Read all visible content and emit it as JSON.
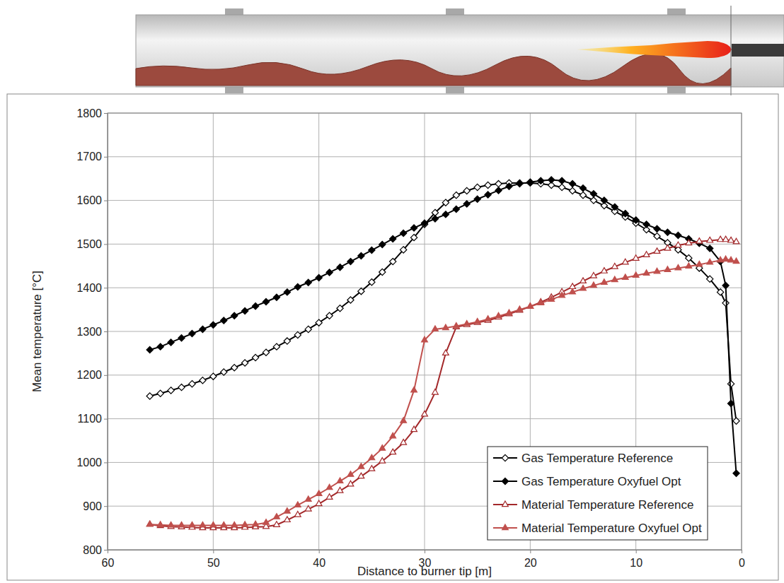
{
  "chart_data": {
    "type": "line",
    "x_label": "Distance to burner tip [m]",
    "y_label": "Mean temperature [°C]",
    "x": [
      56,
      55,
      54,
      53,
      52,
      51,
      50,
      49,
      48,
      47,
      46,
      45,
      44,
      43,
      42,
      41,
      40,
      39,
      38,
      37,
      36,
      35,
      34,
      33,
      32,
      31,
      30,
      29,
      28,
      27,
      26,
      25,
      24,
      23,
      22,
      21,
      20,
      19,
      18,
      17,
      16,
      15,
      14,
      13,
      12,
      11,
      10,
      9,
      8,
      7,
      6,
      5,
      4,
      3,
      2,
      1.5,
      1,
      0.5
    ],
    "series": [
      {
        "name": "Gas Temperature Reference",
        "color": "#000000",
        "marker": "diamond-open",
        "line_style": "solid",
        "values": [
          1152,
          1158,
          1165,
          1172,
          1180,
          1188,
          1197,
          1207,
          1217,
          1228,
          1240,
          1252,
          1265,
          1278,
          1292,
          1305,
          1320,
          1336,
          1353,
          1372,
          1392,
          1413,
          1436,
          1460,
          1487,
          1515,
          1545,
          1572,
          1595,
          1612,
          1622,
          1630,
          1635,
          1638,
          1640,
          1640,
          1640,
          1638,
          1635,
          1630,
          1622,
          1612,
          1600,
          1588,
          1575,
          1562,
          1548,
          1533,
          1518,
          1503,
          1487,
          1468,
          1445,
          1420,
          1390,
          1365,
          1180,
          1095
        ]
      },
      {
        "name": "Gas Temperature Oxyfuel Opt",
        "color": "#000000",
        "marker": "diamond",
        "line_style": "solid",
        "values": [
          1258,
          1265,
          1275,
          1285,
          1295,
          1305,
          1315,
          1325,
          1336,
          1347,
          1358,
          1368,
          1378,
          1390,
          1402,
          1412,
          1423,
          1435,
          1447,
          1460,
          1473,
          1486,
          1499,
          1512,
          1525,
          1537,
          1548,
          1558,
          1568,
          1580,
          1592,
          1603,
          1613,
          1623,
          1632,
          1638,
          1642,
          1645,
          1647,
          1645,
          1638,
          1628,
          1615,
          1600,
          1585,
          1570,
          1555,
          1545,
          1535,
          1527,
          1520,
          1512,
          1502,
          1490,
          1460,
          1405,
          1135,
          975
        ]
      },
      {
        "name": "Material Temperature Reference",
        "color": "#a3282a",
        "marker": "triangle-open",
        "line_style": "solid",
        "values": [
          858,
          855,
          853,
          852,
          851,
          850,
          850,
          850,
          850,
          851,
          852,
          853,
          857,
          868,
          880,
          893,
          905,
          920,
          935,
          950,
          968,
          985,
          1003,
          1023,
          1045,
          1075,
          1110,
          1160,
          1250,
          1310,
          1315,
          1320,
          1325,
          1332,
          1340,
          1348,
          1357,
          1367,
          1378,
          1390,
          1402,
          1415,
          1427,
          1438,
          1448,
          1458,
          1467,
          1475,
          1483,
          1490,
          1497,
          1502,
          1506,
          1508,
          1510,
          1510,
          1508,
          1505
        ]
      },
      {
        "name": "Material Temperature Oxyfuel Opt",
        "color": "#c0504d",
        "marker": "triangle",
        "line_style": "solid",
        "values": [
          858,
          857,
          856,
          856,
          856,
          856,
          856,
          856,
          856,
          857,
          858,
          862,
          875,
          888,
          902,
          915,
          928,
          942,
          957,
          972,
          990,
          1010,
          1032,
          1060,
          1095,
          1165,
          1280,
          1305,
          1308,
          1312,
          1317,
          1322,
          1328,
          1335,
          1342,
          1350,
          1357,
          1365,
          1373,
          1382,
          1390,
          1398,
          1405,
          1412,
          1418,
          1423,
          1428,
          1433,
          1437,
          1441,
          1445,
          1449,
          1453,
          1458,
          1463,
          1465,
          1463,
          1460
        ]
      }
    ],
    "xlim": [
      60,
      0
    ],
    "ylim": [
      800,
      1800
    ],
    "xticks": [
      60,
      50,
      40,
      30,
      20,
      10,
      0
    ],
    "yticks": [
      800,
      900,
      1000,
      1100,
      1200,
      1300,
      1400,
      1500,
      1600,
      1700,
      1800
    ],
    "grid": true,
    "legend": "lower right"
  }
}
